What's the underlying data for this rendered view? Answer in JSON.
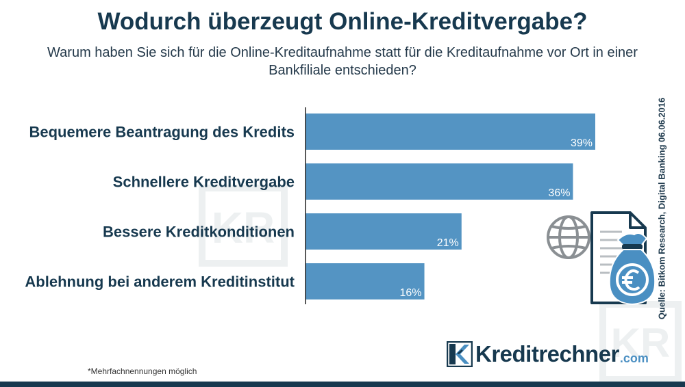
{
  "title": "Wodurch überzeugt Online-Kreditvergabe?",
  "subtitle": "Warum haben Sie sich für die Online-Kreditaufnahme statt für die Kreditaufnahme vor Ort in einer Bankfiliale entschieden?",
  "chart_data": {
    "type": "bar",
    "orientation": "horizontal",
    "categories": [
      "Bequemere Beantragung des Kredits",
      "Schnellere Kreditvergabe",
      "Bessere Kreditkonditionen",
      "Ablehnung bei anderem Kreditinstitut"
    ],
    "values": [
      39,
      36,
      21,
      16
    ],
    "value_labels": [
      "39%",
      "36%",
      "21%",
      "16%"
    ],
    "unit": "%",
    "xlim": [
      0,
      39
    ],
    "bar_color": "#5494c3",
    "title": "Wodurch überzeugt Online-Kreditvergabe?",
    "xlabel": "",
    "ylabel": ""
  },
  "source": "Quelle: Bitkom Research, Digital Banking 06.06.2016",
  "footnote": "*Mehrfachnennungen möglich",
  "logo": {
    "text": "Kreditrechner",
    "suffix": ".com",
    "mark_text": "KR"
  },
  "colors": {
    "primary": "#17394f",
    "bar": "#5494c3",
    "accent": "#4a8fc2",
    "icon_gray": "#8a8f93"
  },
  "icons": [
    "globe-icon",
    "document-icon",
    "money-bag-icon",
    "euro-icon"
  ]
}
